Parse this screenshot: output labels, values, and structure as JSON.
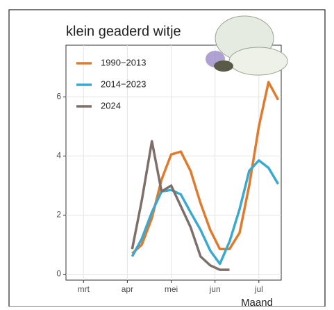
{
  "chart_data": {
    "type": "line",
    "title": "klein geaderd witje",
    "x_label": "Maand",
    "x": [
      4.11,
      4.33,
      4.56,
      4.78,
      5.0,
      5.22,
      5.44,
      5.67,
      5.89,
      6.11,
      6.33,
      6.56,
      6.78,
      7.0,
      7.22,
      7.44
    ],
    "series": [
      {
        "name": "1990−2013",
        "color": "#e07b2e",
        "values": [
          0.7,
          1.0,
          1.9,
          3.2,
          4.05,
          4.15,
          3.5,
          2.4,
          1.5,
          0.85,
          0.85,
          1.4,
          3.0,
          5.0,
          6.5,
          5.9
        ]
      },
      {
        "name": "2014−2023",
        "color": "#3ba9cf",
        "values": [
          0.6,
          1.2,
          2.1,
          2.8,
          2.85,
          2.7,
          2.1,
          1.5,
          0.8,
          0.35,
          1.1,
          2.2,
          3.5,
          3.85,
          3.6,
          3.05
        ]
      },
      {
        "name": "2024",
        "color": "#7d6f69",
        "values": [
          0.85,
          2.5,
          4.5,
          2.8,
          3.0,
          2.3,
          1.6,
          0.6,
          0.3,
          0.15,
          0.15,
          null,
          null,
          null,
          null,
          null
        ]
      }
    ],
    "xlim": [
      2.6,
      7.51
    ],
    "ylim": [
      -0.2,
      7.75
    ],
    "xticks": [
      {
        "value": 3,
        "label": "mrt"
      },
      {
        "value": 4,
        "label": "apr"
      },
      {
        "value": 5,
        "label": "mei"
      },
      {
        "value": 6,
        "label": "jun"
      },
      {
        "value": 7,
        "label": "jul"
      }
    ],
    "yticks": [
      0,
      2,
      4,
      6
    ],
    "grid": true,
    "legend": "top-left"
  }
}
